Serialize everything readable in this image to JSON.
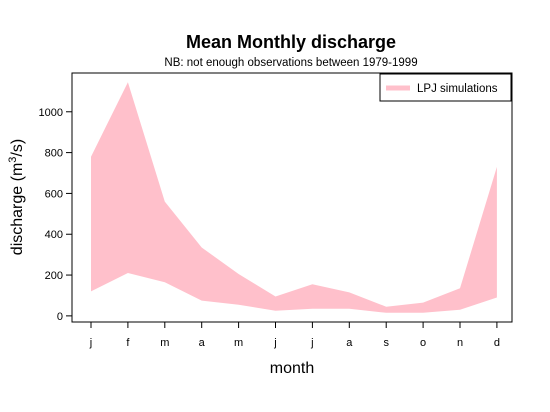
{
  "chart_data": {
    "type": "area",
    "title": "Mean Monthly discharge",
    "subtitle": "NB: not enough observations between 1979-1999",
    "xlabel": "month",
    "ylabel_prefix": "discharge (m",
    "ylabel_sup": "3",
    "ylabel_suffix": "/s)",
    "categories": [
      "j",
      "f",
      "m",
      "a",
      "m",
      "j",
      "j",
      "a",
      "s",
      "o",
      "n",
      "d"
    ],
    "y_ticks": [
      0,
      200,
      400,
      600,
      800,
      1000
    ],
    "ylim": [
      -30,
      1190
    ],
    "series": [
      {
        "name": "LPJ simulations",
        "color": "#FFC0CB",
        "lower": [
          120,
          210,
          165,
          75,
          55,
          25,
          35,
          35,
          15,
          15,
          30,
          90
        ],
        "upper": [
          780,
          1145,
          560,
          335,
          205,
          95,
          155,
          115,
          45,
          65,
          135,
          730
        ]
      }
    ],
    "legend": {
      "position": "top-right"
    },
    "grid": false
  }
}
